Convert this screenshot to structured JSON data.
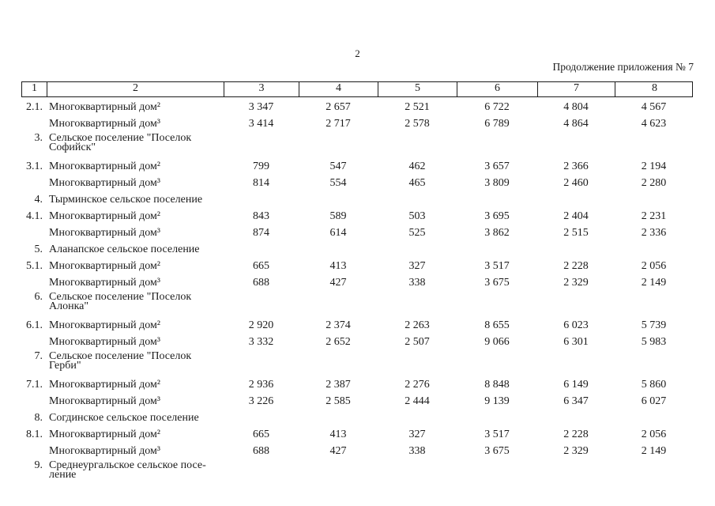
{
  "page": {
    "number": "2",
    "continuation": "Продолжение приложения № 7"
  },
  "table": {
    "header": [
      "1",
      "2",
      "3",
      "4",
      "5",
      "6",
      "7",
      "8"
    ],
    "rows": [
      {
        "num": "2.1.",
        "label": "Многоквартирный дом²",
        "type": "single",
        "values": [
          "3 347",
          "2 657",
          "2 521",
          "6 722",
          "4 804",
          "4 567"
        ]
      },
      {
        "num": "",
        "label": "Многоквартирный дом³",
        "type": "single",
        "values": [
          "3 414",
          "2 717",
          "2 578",
          "6 789",
          "4 864",
          "4 623"
        ]
      },
      {
        "num": "3.",
        "label": "Сельское поселение \"Поселок\nСофийск\"",
        "type": "section-two",
        "values": []
      },
      {
        "num": "3.1.",
        "label": "Многоквартирный дом²",
        "type": "single",
        "values": [
          "799",
          "547",
          "462",
          "3 657",
          "2 366",
          "2 194"
        ]
      },
      {
        "num": "",
        "label": "Многоквартирный дом³",
        "type": "single",
        "values": [
          "814",
          "554",
          "465",
          "3 809",
          "2 460",
          "2 280"
        ]
      },
      {
        "num": "4.",
        "label": "Тырминское сельское поселение",
        "type": "section-one",
        "values": []
      },
      {
        "num": "4.1.",
        "label": "Многоквартирный дом²",
        "type": "single",
        "values": [
          "843",
          "589",
          "503",
          "3 695",
          "2 404",
          "2 231"
        ]
      },
      {
        "num": "",
        "label": "Многоквартирный дом³",
        "type": "single",
        "values": [
          "874",
          "614",
          "525",
          "3 862",
          "2 515",
          "2 336"
        ]
      },
      {
        "num": "5.",
        "label": "Аланапское сельское поселение",
        "type": "section-one",
        "values": []
      },
      {
        "num": "5.1.",
        "label": "Многоквартирный дом²",
        "type": "single",
        "values": [
          "665",
          "413",
          "327",
          "3 517",
          "2 228",
          "2 056"
        ]
      },
      {
        "num": "",
        "label": "Многоквартирный дом³",
        "type": "single",
        "values": [
          "688",
          "427",
          "338",
          "3 675",
          "2 329",
          "2 149"
        ]
      },
      {
        "num": "6.",
        "label": "Сельское поселение \"Поселок\nАлонка\"",
        "type": "section-two",
        "values": []
      },
      {
        "num": "6.1.",
        "label": "Многоквартирный дом²",
        "type": "single",
        "values": [
          "2 920",
          "2 374",
          "2 263",
          "8 655",
          "6 023",
          "5 739"
        ]
      },
      {
        "num": "",
        "label": "Многоквартирный дом³",
        "type": "single",
        "values": [
          "3 332",
          "2 652",
          "2 507",
          "9 066",
          "6 301",
          "5 983"
        ]
      },
      {
        "num": "7.",
        "label": "Сельское поселение \"Поселок\nГерби\"",
        "type": "section-two",
        "values": []
      },
      {
        "num": "7.1.",
        "label": "Многоквартирный дом²",
        "type": "single",
        "values": [
          "2 936",
          "2 387",
          "2 276",
          "8 848",
          "6 149",
          "5 860"
        ]
      },
      {
        "num": "",
        "label": "Многоквартирный дом³",
        "type": "single",
        "values": [
          "3 226",
          "2 585",
          "2 444",
          "9 139",
          "6 347",
          "6 027"
        ]
      },
      {
        "num": "8.",
        "label": "Согдинское сельское поселение",
        "type": "section-one",
        "values": []
      },
      {
        "num": "8.1.",
        "label": "Многоквартирный дом²",
        "type": "single",
        "values": [
          "665",
          "413",
          "327",
          "3 517",
          "2 228",
          "2 056"
        ]
      },
      {
        "num": "",
        "label": "Многоквартирный дом³",
        "type": "single",
        "values": [
          "688",
          "427",
          "338",
          "3 675",
          "2 329",
          "2 149"
        ]
      },
      {
        "num": "9.",
        "label": "Среднеургальское сельское посе-\nление",
        "type": "section-two",
        "values": []
      }
    ]
  }
}
